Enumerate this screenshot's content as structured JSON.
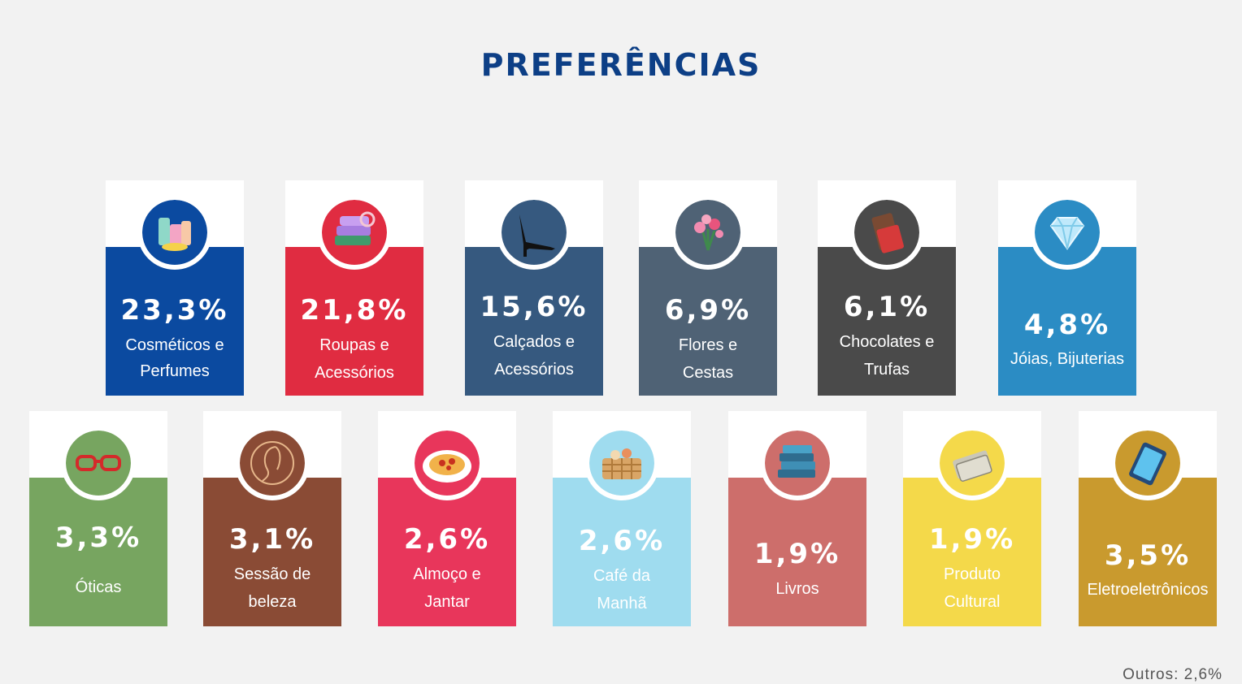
{
  "title": "PREFERÊNCIAS",
  "cards": [
    {
      "value": "23,3%",
      "label_line1": "Cosméticos e",
      "label_line2": "Perfumes",
      "color": "#0b4aa0",
      "icon": "cosmetics-icon"
    },
    {
      "value": "21,8%",
      "label_line1": "Roupas e",
      "label_line2": "Acessórios",
      "color": "#e02c41",
      "icon": "clothes-icon"
    },
    {
      "value": "15,6%",
      "label_line1": "Calçados e",
      "label_line2": "Acessórios",
      "color": "#36597f",
      "icon": "high-heel-icon"
    },
    {
      "value": "6,9%",
      "label_line1": "Flores e",
      "label_line2": "Cestas",
      "color": "#4f6275",
      "icon": "flowers-icon"
    },
    {
      "value": "6,1%",
      "label_line1": "Chocolates e",
      "label_line2": "Trufas",
      "color": "#4a4a4a",
      "icon": "chocolate-icon"
    },
    {
      "value": "4,8%",
      "label_line1": "Jóias, Bijuterias",
      "label_line2": "",
      "color": "#2b8cc4",
      "icon": "diamond-icon"
    },
    {
      "value": "3,3%",
      "label_line1": "Óticas",
      "label_line2": "",
      "color": "#77a560",
      "icon": "glasses-icon"
    },
    {
      "value": "3,1%",
      "label_line1": "Sessão de",
      "label_line2": "beleza",
      "color": "#8a4b35",
      "icon": "beauty-icon"
    },
    {
      "value": "2,6%",
      "label_line1": "Almoço e",
      "label_line2": "Jantar",
      "color": "#e8365b",
      "icon": "food-plate-icon"
    },
    {
      "value": "2,6%",
      "label_line1": "Café da",
      "label_line2": "Manhã",
      "color": "#9fdcef",
      "icon": "breakfast-basket-icon"
    },
    {
      "value": "1,9%",
      "label_line1": "Livros",
      "label_line2": "",
      "color": "#cd6e6b",
      "icon": "books-icon"
    },
    {
      "value": "1,9%",
      "label_line1": "Produto",
      "label_line2": "Cultural",
      "color": "#f4d94a",
      "icon": "ticket-icon"
    },
    {
      "value": "3,5%",
      "label_line1": "Eletroeletrônicos",
      "label_line2": "",
      "color": "#c99a2e",
      "icon": "tablet-icon"
    }
  ],
  "footnote": "Outros: 2,6%"
}
